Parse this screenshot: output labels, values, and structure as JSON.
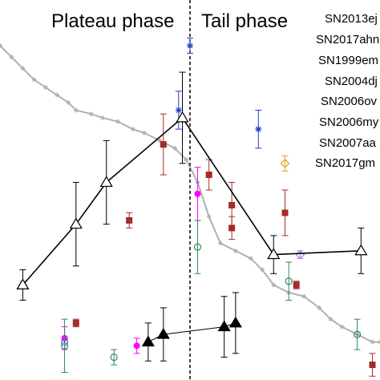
{
  "chart_data": {
    "type": "scatter",
    "title": "",
    "xlabel": "",
    "ylabel": "",
    "phase_labels": [
      "Plateau phase",
      "Tail phase"
    ],
    "legend_entries": [
      "SN2013ej",
      "SN2017ahn",
      "SN1999em",
      "SN2004dj",
      "SN2006ov",
      "SN2006my",
      "SN2007aa",
      "SN2017gm"
    ],
    "grey_curve": {
      "color": "#b0b0b0",
      "points": [
        [
          0,
          0.12
        ],
        [
          0.03,
          0.15
        ],
        [
          0.06,
          0.18
        ],
        [
          0.09,
          0.21
        ],
        [
          0.12,
          0.23
        ],
        [
          0.15,
          0.25
        ],
        [
          0.18,
          0.27
        ],
        [
          0.2,
          0.29
        ],
        [
          0.24,
          0.3
        ],
        [
          0.27,
          0.31
        ],
        [
          0.31,
          0.32
        ],
        [
          0.35,
          0.34
        ],
        [
          0.38,
          0.35
        ],
        [
          0.42,
          0.37
        ],
        [
          0.46,
          0.39
        ],
        [
          0.49,
          0.42
        ],
        [
          0.52,
          0.48
        ],
        [
          0.55,
          0.57
        ],
        [
          0.58,
          0.64
        ],
        [
          0.62,
          0.66
        ],
        [
          0.66,
          0.68
        ],
        [
          0.69,
          0.71
        ],
        [
          0.72,
          0.75
        ],
        [
          0.76,
          0.77
        ],
        [
          0.8,
          0.78
        ],
        [
          0.84,
          0.81
        ],
        [
          0.87,
          0.84
        ],
        [
          0.9,
          0.86
        ],
        [
          0.94,
          0.88
        ],
        [
          0.98,
          0.9
        ],
        [
          1.0,
          0.9
        ]
      ]
    },
    "open_triangle_series": {
      "color": "#000000",
      "points": [
        [
          0.06,
          0.75,
          0.04
        ],
        [
          0.2,
          0.59,
          0.11
        ],
        [
          0.28,
          0.48,
          0.11
        ],
        [
          0.48,
          0.31,
          0.12
        ],
        [
          0.72,
          0.67,
          0.05
        ],
        [
          0.95,
          0.66,
          0.06
        ]
      ]
    },
    "filled_triangle_series": {
      "color": "#000000",
      "points": [
        [
          0.39,
          0.9,
          0.05
        ],
        [
          0.43,
          0.88,
          0.07
        ],
        [
          0.59,
          0.86,
          0.08
        ],
        [
          0.62,
          0.85,
          0.08
        ]
      ]
    },
    "scatter_series": [
      {
        "marker": "square",
        "color": "#a52a2a",
        "points": [
          [
            0.43,
            0.38,
            0.08
          ],
          [
            0.55,
            0.46,
            0.04
          ],
          [
            0.61,
            0.54,
            0.06
          ],
          [
            0.61,
            0.6,
            0.03
          ],
          [
            0.75,
            0.56,
            0.06
          ],
          [
            0.78,
            0.75,
            0.01
          ],
          [
            0.34,
            0.58,
            0.02
          ],
          [
            0.2,
            0.85,
            0.01
          ],
          [
            0.98,
            0.96,
            0.03
          ]
        ]
      },
      {
        "marker": "circle",
        "color": "#ff00ff",
        "points": [
          [
            0.52,
            0.51,
            0.07
          ],
          [
            0.17,
            0.89,
            0.03
          ],
          [
            0.36,
            0.91,
            0.02
          ]
        ]
      },
      {
        "marker": "open-circle",
        "color": "#2e8b57",
        "points": [
          [
            0.52,
            0.65,
            0.07
          ],
          [
            0.76,
            0.74,
            0.05
          ],
          [
            0.3,
            0.94,
            0.02
          ],
          [
            0.17,
            0.91,
            0.07
          ],
          [
            0.94,
            0.88,
            0.04
          ]
        ]
      },
      {
        "marker": "star",
        "color": "#1f3fbf",
        "points": [
          [
            0.5,
            0.12,
            0.02
          ],
          [
            0.47,
            0.29,
            0.05
          ],
          [
            0.68,
            0.34,
            0.05
          ]
        ]
      },
      {
        "marker": "open-diamond",
        "color": "#e0a020",
        "points": [
          [
            0.75,
            0.43,
            0.02
          ]
        ]
      },
      {
        "marker": "open-diamond",
        "color": "#b080e0",
        "points": [
          [
            0.79,
            0.67,
            0.01
          ],
          [
            0.06,
            0.75,
            0.01
          ]
        ]
      },
      {
        "marker": "open-circle",
        "color": "#4a6fd0",
        "points": [
          [
            0.17,
            0.9,
            0.0
          ]
        ]
      }
    ]
  }
}
